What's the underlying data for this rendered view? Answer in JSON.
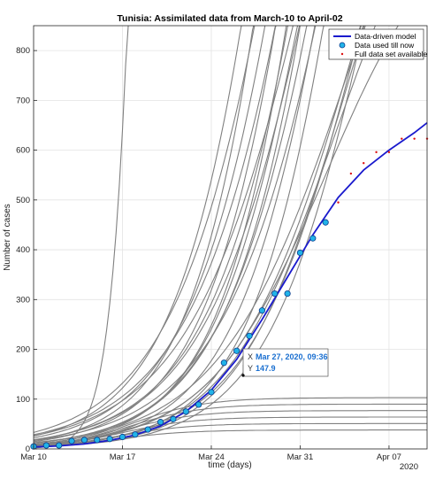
{
  "chart_data": {
    "type": "line",
    "title": "Tunisia: Assimilated data from March-10 to April-02",
    "xlabel": "time (days)",
    "ylabel": "Number of cases",
    "x_unit": "date",
    "x_ticks": [
      "Mar 10",
      "Mar 17",
      "Mar 24",
      "Mar 31",
      "Apr 07"
    ],
    "x_tick_days": [
      10,
      17,
      24,
      31,
      38
    ],
    "x_year_label": "2020",
    "xlim_days": [
      10,
      41
    ],
    "ylim": [
      0,
      850
    ],
    "y_ticks": [
      0,
      100,
      200,
      300,
      400,
      500,
      600,
      700,
      800
    ],
    "grid": true,
    "legend_position": "top-right",
    "series": [
      {
        "name": "Data-driven model",
        "color": "#1a1acd",
        "style": "line",
        "x_days": [
          10,
          12,
          14,
          16,
          18,
          20,
          22,
          24,
          26,
          28,
          30,
          32,
          34,
          36,
          38,
          40,
          41
        ],
        "values": [
          4,
          6,
          10,
          17,
          28,
          46,
          75,
          118,
          180,
          260,
          345,
          430,
          505,
          560,
          600,
          635,
          655
        ]
      },
      {
        "name": "Data used till now",
        "color": "#21b3e8",
        "style": "marker",
        "x_days": [
          10,
          11,
          12,
          13,
          14,
          15,
          16,
          17,
          18,
          19,
          20,
          21,
          22,
          23,
          24,
          25,
          26,
          27,
          28,
          29,
          30,
          31,
          32,
          33
        ],
        "values": [
          5,
          7,
          7,
          16,
          18,
          18,
          20,
          24,
          29,
          39,
          54,
          60,
          75,
          89,
          114,
          173,
          197,
          227,
          278,
          312,
          312,
          394,
          423,
          455
        ]
      },
      {
        "name": "Full data set available",
        "color": "#dd1010",
        "style": "dot",
        "x_days": [
          34,
          35,
          36,
          37,
          38,
          39,
          40,
          41
        ],
        "values": [
          495,
          553,
          574,
          596,
          596,
          623,
          623,
          623
        ]
      }
    ],
    "ensemble_curves": {
      "color": "#808080",
      "count": 30
    },
    "datatip": {
      "x_label": "X",
      "x_value": "Mar 27, 2020, 09:36",
      "y_label": "Y",
      "y_value": "147.9",
      "point_x_day": 27.4,
      "point_y": 147.9
    }
  }
}
